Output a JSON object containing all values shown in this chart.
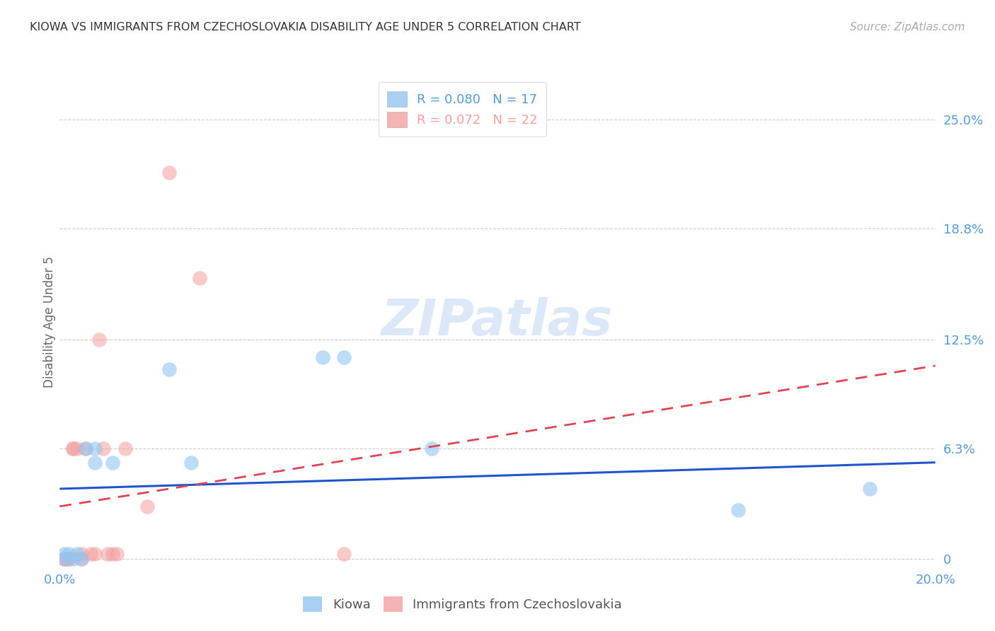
{
  "title": "KIOWA VS IMMIGRANTS FROM CZECHOSLOVAKIA DISABILITY AGE UNDER 5 CORRELATION CHART",
  "source": "Source: ZipAtlas.com",
  "ylabel": "Disability Age Under 5",
  "ytick_labels": [
    "0",
    "6.3%",
    "12.5%",
    "18.8%",
    "25.0%"
  ],
  "ytick_values": [
    0.0,
    0.063,
    0.125,
    0.188,
    0.25
  ],
  "xlim": [
    0.0,
    0.2
  ],
  "ylim": [
    -0.005,
    0.275
  ],
  "kiowa_R": 0.08,
  "kiowa_N": 17,
  "immig_R": 0.072,
  "immig_N": 22,
  "kiowa_color": "#92C5F0",
  "immig_color": "#F4A0A0",
  "trend_kiowa_color": "#2255CC",
  "trend_immig_color": "#DD4455",
  "background_color": "#ffffff",
  "grid_color": "#cccccc",
  "axis_label_color": "#5599DD",
  "title_color": "#333333",
  "kiowa_x": [
    0.001,
    0.001,
    0.002,
    0.003,
    0.004,
    0.005,
    0.006,
    0.008,
    0.008,
    0.012,
    0.025,
    0.03,
    0.06,
    0.065,
    0.085,
    0.155,
    0.185
  ],
  "kiowa_y": [
    0.0,
    0.003,
    0.003,
    0.0,
    0.003,
    0.0,
    0.063,
    0.063,
    0.055,
    0.055,
    0.108,
    0.055,
    0.115,
    0.115,
    0.063,
    0.028,
    0.04
  ],
  "immig_x": [
    0.001,
    0.001,
    0.002,
    0.002,
    0.003,
    0.003,
    0.004,
    0.005,
    0.005,
    0.006,
    0.007,
    0.008,
    0.009,
    0.01,
    0.011,
    0.012,
    0.013,
    0.015,
    0.02,
    0.025,
    0.032,
    0.065
  ],
  "immig_y": [
    0.0,
    0.0,
    0.0,
    0.0,
    0.063,
    0.063,
    0.063,
    0.0,
    0.003,
    0.063,
    0.003,
    0.003,
    0.125,
    0.063,
    0.003,
    0.003,
    0.003,
    0.063,
    0.03,
    0.22,
    0.16,
    0.003
  ],
  "trend_kiowa_x0": 0.0,
  "trend_kiowa_x1": 0.2,
  "trend_kiowa_y0": 0.04,
  "trend_kiowa_y1": 0.055,
  "trend_immig_x0": 0.0,
  "trend_immig_x1": 0.2,
  "trend_immig_y0": 0.03,
  "trend_immig_y1": 0.11
}
